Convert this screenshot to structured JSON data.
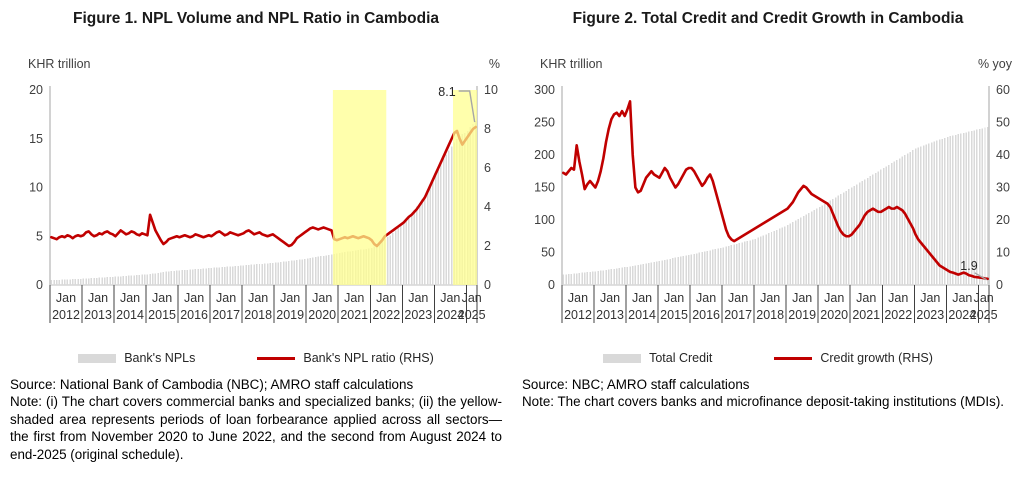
{
  "colors": {
    "bar": "#D9D9D9",
    "line": "#C00000",
    "band": "#FFFF8C",
    "band_opacity": 0.72,
    "leader": "#A6A6A6",
    "axis_line": "#BFBFBF",
    "tick_line": "#404040",
    "tick_text": "#3F3F3F",
    "annotation_text": "#262626"
  },
  "figure1": {
    "title": "Figure 1.  NPL Volume and NPL Ratio in Cambodia",
    "source": "Source: National Bank of Cambodia (NBC); AMRO staff calculations",
    "note": "Note: (i) The chart covers commercial banks and specialized banks; (ii) the yellow-shaded area represents periods of loan forbearance applied across all sectors—the first from November 2020 to June 2022, and the second from August 2024 to end-2025 (original schedule).",
    "chart_data": {
      "type": "bar+line",
      "title": "NPL Volume and NPL Ratio in Cambodia",
      "x": {
        "start": "2012-01",
        "end": "2025-04",
        "frequency": "monthly",
        "month_label": "Jan",
        "years": [
          "2012",
          "2013",
          "2014",
          "2015",
          "2016",
          "2017",
          "2018",
          "2019",
          "2020",
          "2021",
          "2022",
          "2023",
          "2024",
          "2025"
        ]
      },
      "left_axis": {
        "label": "KHR trillion",
        "min": 0,
        "max": 20,
        "ticks": [
          0,
          5,
          10,
          15,
          20
        ]
      },
      "right_axis": {
        "label": "%",
        "min": 0,
        "max": 10,
        "ticks": [
          0,
          2,
          4,
          6,
          8,
          10
        ]
      },
      "bands": [
        {
          "from": "2020-11",
          "to": "2022-06",
          "meaning": "loan forbearance period 1"
        },
        {
          "from": "2024-08",
          "to": "2025-04",
          "meaning": "loan forbearance period 2 (to end-2025, original schedule)"
        }
      ],
      "annotation": {
        "text": "8.1",
        "series": "Bank's NPL ratio (RHS)",
        "at": "2025-04"
      },
      "series": [
        {
          "name": "Bank's NPLs",
          "type": "bar",
          "axis": "left",
          "values": [
            0.5,
            0.51,
            0.52,
            0.53,
            0.55,
            0.56,
            0.57,
            0.58,
            0.6,
            0.61,
            0.63,
            0.64,
            0.65,
            0.67,
            0.68,
            0.7,
            0.72,
            0.73,
            0.75,
            0.77,
            0.78,
            0.8,
            0.82,
            0.84,
            0.85,
            0.87,
            0.89,
            0.91,
            0.93,
            0.95,
            0.97,
            1.0,
            1.02,
            1.04,
            1.06,
            1.08,
            1.1,
            1.13,
            1.16,
            1.2,
            1.24,
            1.28,
            1.32,
            1.36,
            1.4,
            1.43,
            1.46,
            1.48,
            1.5,
            1.52,
            1.54,
            1.56,
            1.58,
            1.6,
            1.62,
            1.64,
            1.66,
            1.69,
            1.71,
            1.73,
            1.75,
            1.77,
            1.79,
            1.81,
            1.83,
            1.85,
            1.88,
            1.9,
            1.92,
            1.94,
            1.96,
            1.98,
            2.0,
            2.03,
            2.05,
            2.08,
            2.1,
            2.13,
            2.15,
            2.18,
            2.2,
            2.23,
            2.25,
            2.28,
            2.3,
            2.33,
            2.37,
            2.4,
            2.43,
            2.47,
            2.5,
            2.53,
            2.57,
            2.6,
            2.63,
            2.67,
            2.7,
            2.75,
            2.8,
            2.85,
            2.9,
            2.95,
            3.0,
            3.05,
            3.1,
            3.15,
            3.2,
            3.25,
            3.3,
            3.34,
            3.38,
            3.42,
            3.46,
            3.5,
            3.54,
            3.58,
            3.62,
            3.66,
            3.7,
            3.75,
            3.8,
            3.95,
            4.1,
            4.3,
            4.5,
            4.7,
            4.9,
            5.1,
            5.35,
            5.6,
            5.85,
            6.05,
            6.3,
            6.65,
            7.0,
            7.35,
            7.7,
            8.05,
            8.4,
            8.8,
            9.2,
            9.7,
            10.3,
            10.9,
            11.5,
            12.0,
            12.5,
            13.0,
            13.4,
            13.8,
            14.2,
            14.6,
            15.0,
            15.3,
            15.5,
            15.6,
            15.8,
            16.2,
            16.5,
            16.8
          ]
        },
        {
          "name": "Bank's NPL ratio (RHS)",
          "type": "line",
          "axis": "right",
          "values": [
            2.45,
            2.4,
            2.35,
            2.45,
            2.5,
            2.45,
            2.55,
            2.5,
            2.4,
            2.5,
            2.55,
            2.5,
            2.55,
            2.7,
            2.75,
            2.6,
            2.5,
            2.55,
            2.65,
            2.6,
            2.7,
            2.75,
            2.65,
            2.6,
            2.5,
            2.65,
            2.8,
            2.7,
            2.6,
            2.65,
            2.75,
            2.7,
            2.6,
            2.55,
            2.65,
            2.6,
            2.55,
            3.6,
            3.2,
            2.8,
            2.55,
            2.3,
            2.1,
            2.2,
            2.35,
            2.4,
            2.45,
            2.5,
            2.45,
            2.5,
            2.55,
            2.5,
            2.45,
            2.5,
            2.6,
            2.55,
            2.5,
            2.45,
            2.5,
            2.55,
            2.5,
            2.6,
            2.7,
            2.75,
            2.65,
            2.55,
            2.6,
            2.7,
            2.65,
            2.6,
            2.55,
            2.6,
            2.65,
            2.75,
            2.8,
            2.7,
            2.6,
            2.65,
            2.7,
            2.6,
            2.55,
            2.5,
            2.55,
            2.6,
            2.5,
            2.4,
            2.3,
            2.2,
            2.1,
            2.0,
            2.05,
            2.2,
            2.4,
            2.5,
            2.6,
            2.7,
            2.8,
            2.9,
            2.95,
            2.9,
            2.85,
            2.9,
            2.95,
            2.9,
            2.85,
            2.8,
            2.35,
            2.3,
            2.35,
            2.4,
            2.45,
            2.4,
            2.45,
            2.5,
            2.45,
            2.4,
            2.45,
            2.5,
            2.45,
            2.4,
            2.3,
            2.1,
            2.0,
            2.15,
            2.3,
            2.5,
            2.6,
            2.7,
            2.8,
            2.9,
            3.0,
            3.1,
            3.2,
            3.35,
            3.5,
            3.6,
            3.75,
            3.9,
            4.1,
            4.3,
            4.5,
            4.8,
            5.1,
            5.4,
            5.7,
            6.0,
            6.3,
            6.6,
            6.9,
            7.2,
            7.5,
            7.8,
            7.9,
            7.5,
            7.2,
            7.4,
            7.6,
            7.8,
            8.0,
            8.1
          ]
        }
      ]
    }
  },
  "figure2": {
    "title": "Figure 2.  Total Credit and Credit Growth in Cambodia",
    "source": "Source: NBC; AMRO staff calculations",
    "note": "Note: The chart covers banks and microfinance deposit-taking institutions (MDIs).",
    "chart_data": {
      "type": "bar+line",
      "title": "Total Credit and Credit Growth in Cambodia",
      "x": {
        "start": "2012-01",
        "end": "2025-04",
        "frequency": "monthly",
        "month_label": "Jan",
        "years": [
          "2012",
          "2013",
          "2014",
          "2015",
          "2016",
          "2017",
          "2018",
          "2019",
          "2020",
          "2021",
          "2022",
          "2023",
          "2024",
          "2025"
        ]
      },
      "left_axis": {
        "label": "KHR trillion",
        "min": 0,
        "max": 300,
        "ticks": [
          0,
          50,
          100,
          150,
          200,
          250,
          300
        ]
      },
      "right_axis": {
        "label": "% yoy",
        "min": 0,
        "max": 60,
        "ticks": [
          0,
          10,
          20,
          30,
          40,
          50,
          60
        ]
      },
      "bands": [],
      "annotation": {
        "text": "1.9",
        "series": "Credit growth (RHS)",
        "at": "2025-04"
      },
      "series": [
        {
          "name": "Total Credit",
          "type": "bar",
          "axis": "left",
          "values": [
            16.0,
            16.4,
            16.8,
            17.2,
            17.6,
            18.0,
            18.4,
            18.9,
            19.3,
            19.7,
            20.1,
            20.6,
            21.0,
            21.6,
            22.2,
            22.7,
            23.3,
            23.9,
            24.5,
            25.0,
            25.6,
            26.2,
            26.8,
            27.4,
            28.0,
            28.8,
            29.5,
            30.3,
            31.0,
            31.8,
            32.5,
            33.3,
            34.0,
            34.8,
            35.5,
            36.3,
            37.0,
            37.8,
            38.7,
            39.5,
            40.3,
            41.2,
            42.0,
            42.8,
            43.7,
            44.5,
            45.3,
            46.2,
            47.0,
            47.9,
            48.8,
            49.8,
            50.7,
            51.6,
            52.5,
            53.4,
            54.3,
            55.3,
            56.2,
            57.1,
            58.0,
            59.1,
            60.2,
            61.3,
            62.3,
            63.4,
            64.5,
            65.6,
            66.7,
            67.8,
            68.8,
            69.9,
            71.0,
            72.8,
            74.5,
            76.3,
            78.0,
            79.8,
            81.5,
            83.3,
            85.0,
            86.8,
            88.5,
            90.3,
            92.0,
            94.3,
            96.7,
            99.0,
            101.3,
            103.7,
            106.0,
            108.3,
            110.7,
            113.0,
            115.3,
            117.7,
            120.0,
            122.5,
            125.0,
            127.5,
            130.0,
            132.5,
            135.0,
            137.5,
            140.0,
            142.5,
            145.0,
            147.5,
            150.0,
            152.5,
            155.0,
            157.5,
            160.0,
            162.5,
            165.0,
            167.5,
            170.0,
            172.5,
            175.0,
            177.5,
            180.0,
            182.5,
            185.0,
            187.5,
            190.0,
            192.5,
            195.0,
            197.5,
            200.0,
            202.5,
            205.0,
            207.5,
            210.0,
            211.5,
            213.0,
            214.5,
            216.0,
            217.5,
            219.0,
            220.5,
            222.0,
            223.5,
            225.0,
            226.5,
            228.0,
            229.0,
            230.0,
            231.0,
            232.0,
            233.0,
            234.0,
            235.0,
            236.0,
            237.0,
            238.0,
            239.0,
            240.0,
            241.0,
            242.0,
            243.0
          ]
        },
        {
          "name": "Credit growth (RHS)",
          "type": "line",
          "axis": "right",
          "values": [
            34.5,
            34.0,
            35.0,
            36.0,
            35.5,
            43.0,
            38.0,
            34.0,
            29.5,
            31.0,
            32.0,
            31.0,
            30.0,
            32.0,
            35.0,
            39.0,
            44.0,
            48.0,
            51.0,
            52.5,
            53.0,
            52.0,
            53.5,
            52.0,
            54.0,
            56.5,
            40.0,
            30.0,
            28.5,
            29.0,
            31.0,
            33.0,
            34.0,
            35.0,
            34.0,
            33.5,
            33.0,
            34.5,
            36.0,
            35.0,
            33.0,
            31.5,
            30.0,
            31.0,
            32.5,
            34.0,
            35.5,
            36.0,
            36.0,
            35.0,
            33.5,
            32.0,
            30.5,
            31.5,
            33.0,
            34.0,
            32.0,
            29.0,
            26.0,
            23.0,
            20.0,
            17.0,
            15.0,
            14.0,
            13.5,
            14.0,
            14.5,
            15.0,
            15.5,
            16.0,
            16.5,
            17.0,
            17.5,
            18.0,
            18.5,
            19.0,
            19.5,
            20.0,
            20.5,
            21.0,
            21.5,
            22.0,
            22.5,
            23.0,
            23.5,
            24.5,
            25.5,
            27.0,
            28.5,
            29.5,
            30.5,
            30.0,
            29.0,
            28.0,
            27.5,
            27.0,
            26.5,
            26.0,
            25.5,
            25.0,
            24.0,
            22.0,
            20.0,
            18.0,
            16.5,
            15.5,
            15.0,
            15.0,
            15.5,
            16.5,
            17.5,
            18.5,
            20.0,
            21.5,
            22.5,
            23.0,
            23.5,
            23.0,
            22.5,
            22.5,
            23.0,
            23.5,
            24.0,
            23.5,
            23.5,
            24.0,
            23.5,
            23.0,
            22.0,
            20.5,
            19.0,
            17.5,
            15.5,
            14.0,
            13.0,
            12.0,
            11.0,
            10.0,
            9.0,
            8.0,
            7.0,
            6.0,
            5.5,
            5.0,
            4.5,
            4.0,
            3.8,
            3.5,
            3.2,
            3.5,
            3.8,
            3.5,
            3.0,
            2.8,
            2.5,
            2.4,
            2.3,
            2.2,
            2.0,
            1.9
          ]
        }
      ]
    }
  }
}
